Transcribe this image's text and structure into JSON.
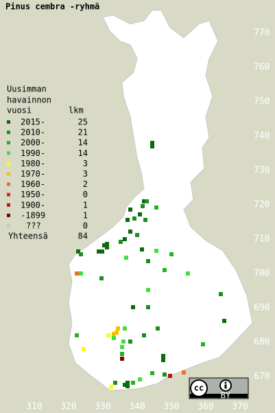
{
  "title": "Pinus cembra -ryhmä",
  "legend": {
    "header": [
      "Uusimman",
      "havainnon",
      "vuosi"
    ],
    "count_header": "lkm",
    "rows": [
      {
        "label": "2015-",
        "count": 25,
        "color": "#0b6a0b"
      },
      {
        "label": "2010-",
        "count": 21,
        "color": "#1c8e1c"
      },
      {
        "label": "2000-",
        "count": 14,
        "color": "#22b522"
      },
      {
        "label": "1990-",
        "count": 14,
        "color": "#3ee03e"
      },
      {
        "label": "1980-",
        "count": 3,
        "color": "#ffff00"
      },
      {
        "label": "1970-",
        "count": 3,
        "color": "#f2c200"
      },
      {
        "label": "1960-",
        "count": 2,
        "color": "#f07020"
      },
      {
        "label": "1950-",
        "count": 0,
        "color": "#e02020"
      },
      {
        "label": "1900-",
        "count": 1,
        "color": "#c01010"
      },
      {
        "label": "-1899",
        "count": 1,
        "color": "#800000"
      },
      {
        "label": "???",
        "count": 0,
        "color": "#c8c8c8"
      }
    ],
    "total_label": "Yhteensä",
    "total": 84
  },
  "grid_labels": {
    "north": [
      670,
      680,
      690,
      700,
      710,
      720,
      730,
      740,
      750,
      760,
      770
    ],
    "east": [
      310,
      320,
      330,
      340,
      350,
      360,
      370
    ]
  },
  "squares": [
    [
      344.4,
      738,
      0
    ],
    [
      344.4,
      737,
      0
    ],
    [
      342,
      721,
      0
    ],
    [
      342.8,
      721,
      1
    ],
    [
      341.6,
      719.6,
      1
    ],
    [
      345.6,
      719.2,
      2
    ],
    [
      338,
      718.6,
      0
    ],
    [
      337.2,
      715.6,
      0
    ],
    [
      339.2,
      716,
      1
    ],
    [
      340.8,
      717.2,
      0
    ],
    [
      342.4,
      715.6,
      1
    ],
    [
      338,
      712.2,
      0
    ],
    [
      340,
      711.2,
      1
    ],
    [
      335.2,
      709.2,
      1
    ],
    [
      331.2,
      708.6,
      0
    ],
    [
      331.2,
      707.6,
      0
    ],
    [
      330.4,
      708.2,
      0
    ],
    [
      328.8,
      706.4,
      0
    ],
    [
      329.8,
      706.4,
      0
    ],
    [
      322.8,
      706.4,
      0
    ],
    [
      323.6,
      705.6,
      1
    ],
    [
      336.4,
      710,
      0
    ],
    [
      341.4,
      707,
      0
    ],
    [
      345.6,
      706.6,
      3
    ],
    [
      343.2,
      703.6,
      1
    ],
    [
      350,
      705.6,
      2
    ],
    [
      336.8,
      704.6,
      3
    ],
    [
      348,
      701,
      2
    ],
    [
      322.4,
      700,
      6
    ],
    [
      323.6,
      700,
      3
    ],
    [
      329.6,
      698.6,
      1
    ],
    [
      354.8,
      700,
      3
    ],
    [
      364.4,
      694,
      1
    ],
    [
      338.8,
      690.2,
      0
    ],
    [
      343.2,
      690.2,
      1
    ],
    [
      343.2,
      695.2,
      3
    ],
    [
      365.4,
      686.2,
      0
    ],
    [
      346,
      684,
      1
    ],
    [
      322.4,
      682,
      2
    ],
    [
      331.6,
      682,
      4
    ],
    [
      333.2,
      682.4,
      5
    ],
    [
      334.4,
      684,
      5
    ],
    [
      334,
      682.8,
      5
    ],
    [
      336.4,
      684,
      3
    ],
    [
      333.2,
      681.2,
      3
    ],
    [
      336,
      680.2,
      3
    ],
    [
      338,
      680.2,
      1
    ],
    [
      342,
      682,
      1
    ],
    [
      335.6,
      678.6,
      3
    ],
    [
      335.6,
      676.6,
      2
    ],
    [
      335.6,
      675.2,
      9
    ],
    [
      324.4,
      678,
      4
    ],
    [
      347.6,
      676,
      0
    ],
    [
      347.6,
      674.8,
      0
    ],
    [
      359.2,
      679.4,
      2
    ],
    [
      353.6,
      671.2,
      6
    ],
    [
      349.6,
      670.2,
      8
    ],
    [
      333.6,
      668.2,
      1
    ],
    [
      332.4,
      667,
      4
    ],
    [
      337.2,
      668.2,
      0
    ],
    [
      337.2,
      667.2,
      0
    ],
    [
      336.4,
      667.6,
      0
    ],
    [
      338.8,
      668.2,
      2
    ],
    [
      340.8,
      669.2,
      3
    ],
    [
      344.4,
      671,
      2
    ],
    [
      348,
      670.6,
      1
    ]
  ],
  "badge_icon": "cc",
  "badge": "BY"
}
